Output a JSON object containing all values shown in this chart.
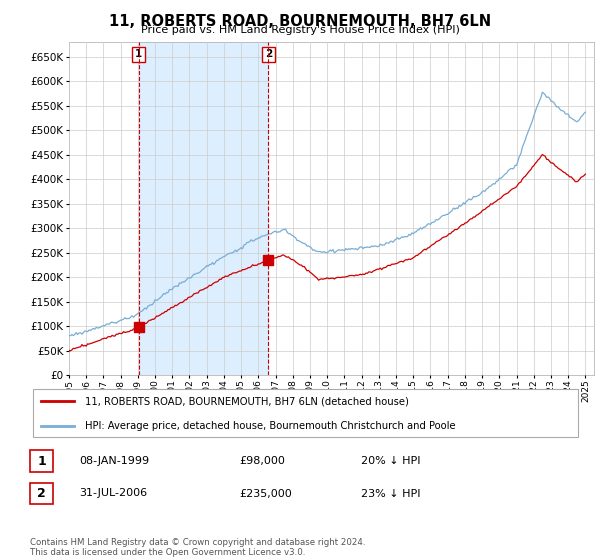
{
  "title": "11, ROBERTS ROAD, BOURNEMOUTH, BH7 6LN",
  "subtitle": "Price paid vs. HM Land Registry's House Price Index (HPI)",
  "legend_line1": "11, ROBERTS ROAD, BOURNEMOUTH, BH7 6LN (detached house)",
  "legend_line2": "HPI: Average price, detached house, Bournemouth Christchurch and Poole",
  "footer": "Contains HM Land Registry data © Crown copyright and database right 2024.\nThis data is licensed under the Open Government Licence v3.0.",
  "transaction1_date": "08-JAN-1999",
  "transaction1_price": "£98,000",
  "transaction1_hpi": "20% ↓ HPI",
  "transaction1_year": 1999.04,
  "transaction1_value": 98000,
  "transaction2_date": "31-JUL-2006",
  "transaction2_price": "£235,000",
  "transaction2_hpi": "23% ↓ HPI",
  "transaction2_year": 2006.58,
  "transaction2_value": 235000,
  "hpi_color": "#7aadd4",
  "price_color": "#cc0000",
  "marker_color": "#cc0000",
  "vline_color": "#cc0000",
  "shade_color": "#ddeeff",
  "grid_color": "#cccccc",
  "ylim_min": 0,
  "ylim_max": 680000,
  "year_start": 1995,
  "year_end": 2025,
  "background_color": "#ffffff"
}
